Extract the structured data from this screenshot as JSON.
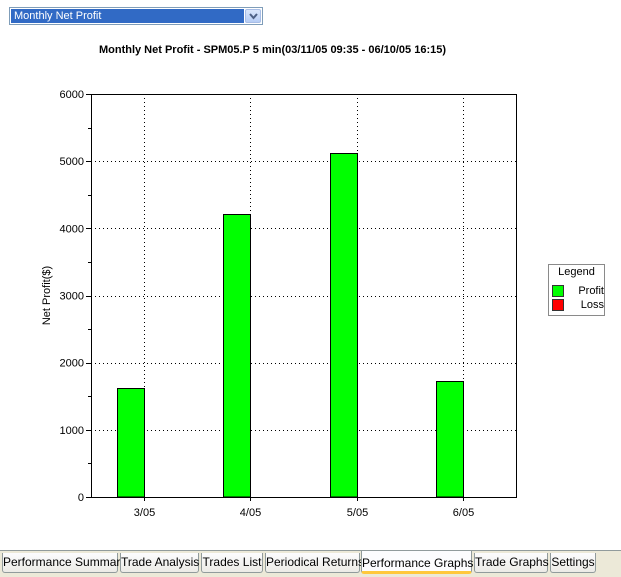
{
  "view_selector": {
    "selected": "Monthly Net Profit"
  },
  "chart_data": {
    "type": "bar",
    "title": "Monthly Net Profit - SPM05.P 5 min(03/11/05 09:35 - 06/10/05 16:15)",
    "xlabel": "",
    "ylabel": "Net Profit($)",
    "categories": [
      "3/05",
      "4/05",
      "5/05",
      "6/05"
    ],
    "series": [
      {
        "name": "Profit",
        "color": "#00ff00",
        "values": [
          1620,
          4220,
          5120,
          1720
        ]
      },
      {
        "name": "Loss",
        "color": "#ff0000",
        "values": [
          0,
          0,
          0,
          0
        ]
      }
    ],
    "ylim": [
      0,
      6000
    ],
    "yticks": [
      0,
      1000,
      2000,
      3000,
      4000,
      5000,
      6000
    ],
    "grid": true,
    "legend_title": "Legend",
    "legend_position": "right"
  },
  "tabs": [
    {
      "label": "Performance Summary"
    },
    {
      "label": "Trade Analysis"
    },
    {
      "label": "Trades List"
    },
    {
      "label": "Periodical Returns"
    },
    {
      "label": "Performance Graphs",
      "active": true
    },
    {
      "label": "Trade Graphs"
    },
    {
      "label": "Settings"
    }
  ]
}
